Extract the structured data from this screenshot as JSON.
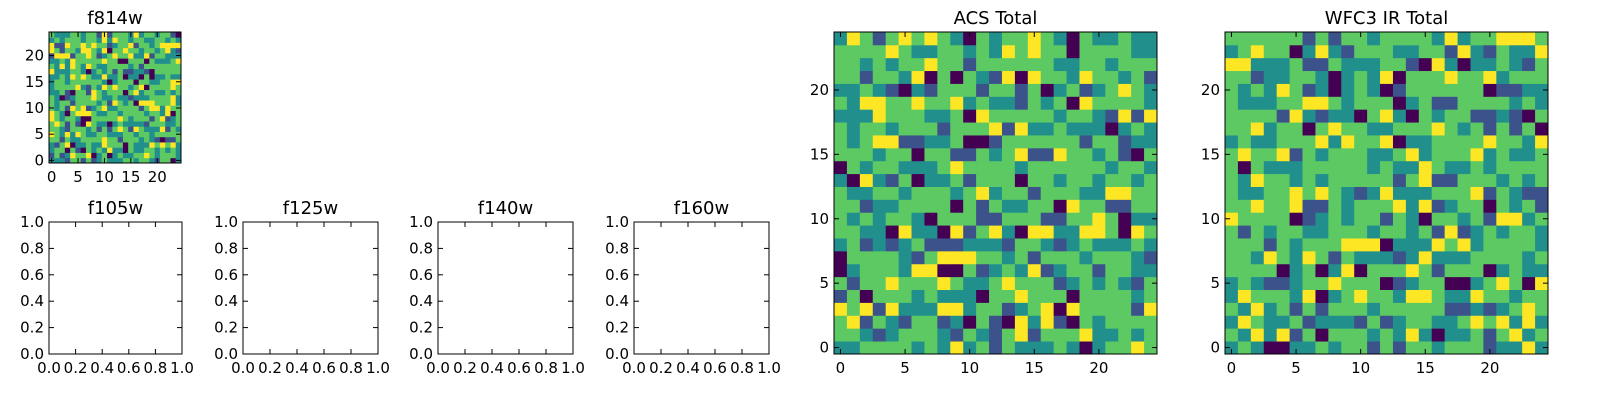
{
  "chart_data": [
    {
      "id": "f814w",
      "type": "heatmap",
      "title": "f814w",
      "grid_size": 25,
      "xlim": [
        -0.5,
        24.5
      ],
      "ylim": [
        -0.5,
        24.5
      ],
      "xticks": [
        0,
        5,
        10,
        15,
        20
      ],
      "yticks": [
        0,
        5,
        10,
        15,
        20
      ],
      "colormap": [
        "#440154",
        "#3b528b",
        "#21908d",
        "#5dc963",
        "#fde725"
      ],
      "seed": 11
    },
    {
      "id": "f105w",
      "type": "empty",
      "title": "f105w",
      "xlim": [
        0,
        1
      ],
      "ylim": [
        0,
        1
      ],
      "xticks": [
        "0.0",
        "0.2",
        "0.4",
        "0.6",
        "0.8",
        "1.0"
      ],
      "yticks": [
        "0.0",
        "0.2",
        "0.4",
        "0.6",
        "0.8",
        "1.0"
      ]
    },
    {
      "id": "f125w",
      "type": "empty",
      "title": "f125w",
      "xlim": [
        0,
        1
      ],
      "ylim": [
        0,
        1
      ],
      "xticks": [
        "0.0",
        "0.2",
        "0.4",
        "0.6",
        "0.8",
        "1.0"
      ],
      "yticks": [
        "0.0",
        "0.2",
        "0.4",
        "0.6",
        "0.8",
        "1.0"
      ]
    },
    {
      "id": "f140w",
      "type": "empty",
      "title": "f140w",
      "xlim": [
        0,
        1
      ],
      "ylim": [
        0,
        1
      ],
      "xticks": [
        "0.0",
        "0.2",
        "0.4",
        "0.6",
        "0.8",
        "1.0"
      ],
      "yticks": [
        "0.0",
        "0.2",
        "0.4",
        "0.6",
        "0.8",
        "1.0"
      ]
    },
    {
      "id": "f160w",
      "type": "empty",
      "title": "f160w",
      "xlim": [
        0,
        1
      ],
      "ylim": [
        0,
        1
      ],
      "xticks": [
        "0.0",
        "0.2",
        "0.4",
        "0.6",
        "0.8",
        "1.0"
      ],
      "yticks": [
        "0.0",
        "0.2",
        "0.4",
        "0.6",
        "0.8",
        "1.0"
      ]
    },
    {
      "id": "acs-total",
      "type": "heatmap",
      "title": "ACS Total",
      "grid_size": 25,
      "xlim": [
        -0.5,
        24.5
      ],
      "ylim": [
        -0.5,
        24.5
      ],
      "xticks": [
        0,
        5,
        10,
        15,
        20
      ],
      "yticks": [
        0,
        5,
        10,
        15,
        20
      ],
      "colormap": [
        "#440154",
        "#3b528b",
        "#21908d",
        "#5dc963",
        "#fde725"
      ],
      "seed": 23
    },
    {
      "id": "wfc3-ir-total",
      "type": "heatmap",
      "title": "WFC3 IR Total",
      "grid_size": 25,
      "xlim": [
        -0.5,
        24.5
      ],
      "ylim": [
        -0.5,
        24.5
      ],
      "xticks": [
        0,
        5,
        10,
        15,
        20
      ],
      "yticks": [
        0,
        5,
        10,
        15,
        20
      ],
      "colormap": [
        "#440154",
        "#3b528b",
        "#21908d",
        "#5dc963",
        "#fde725"
      ],
      "seed": 37
    }
  ]
}
